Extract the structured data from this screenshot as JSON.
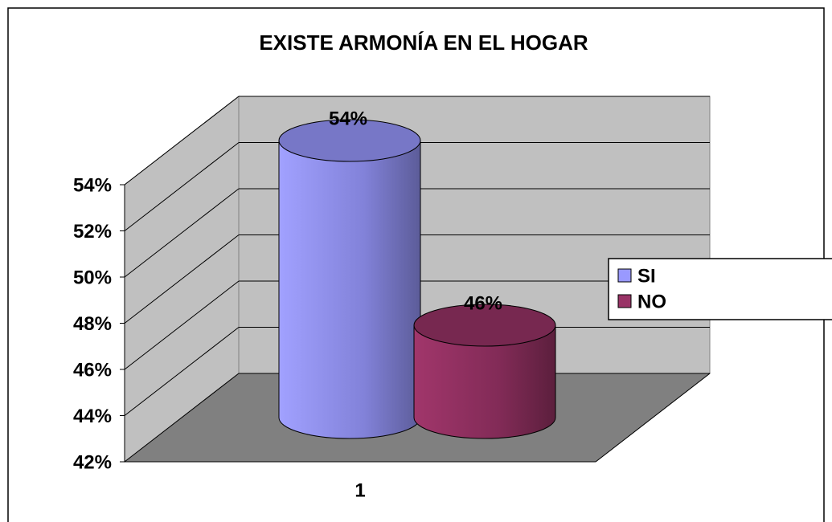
{
  "chart_data": {
    "type": "cylinder3d",
    "title": "EXISTE ARMONÍA EN EL HOGAR",
    "categories": [
      "1"
    ],
    "series": [
      {
        "name": "SI",
        "color": "#9999ff",
        "values": [
          54
        ],
        "value_labels": [
          "54%"
        ]
      },
      {
        "name": "NO",
        "color": "#993366",
        "values": [
          46
        ],
        "value_labels": [
          "46%"
        ]
      }
    ],
    "ylim": [
      42,
      54
    ],
    "yticks": [
      {
        "value": 42,
        "label": "42%"
      },
      {
        "value": 44,
        "label": "44%"
      },
      {
        "value": 46,
        "label": "46%"
      },
      {
        "value": 48,
        "label": "48%"
      },
      {
        "value": 50,
        "label": "50%"
      },
      {
        "value": 52,
        "label": "52%"
      },
      {
        "value": 54,
        "label": "54%"
      }
    ],
    "grid": true,
    "legend": "right"
  }
}
